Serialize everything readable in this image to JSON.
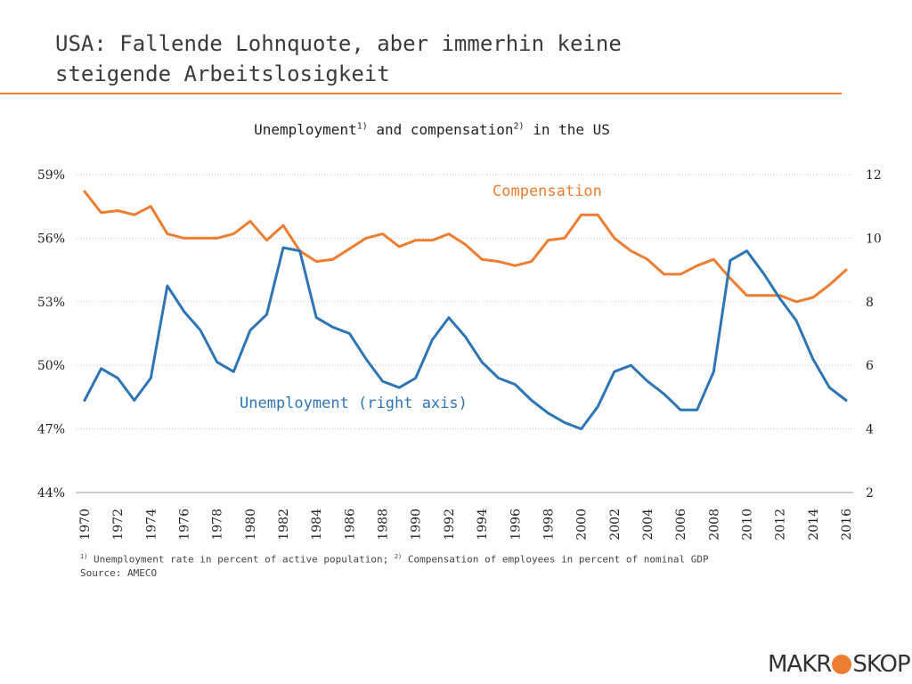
{
  "page": {
    "title_line1": "USA: Fallende Lohnquote, aber immerhin keine",
    "title_line2": "steigende Arbeitslosigkeit",
    "accent_color": "#ed7d31"
  },
  "chart_title": {
    "part1": "Unemployment",
    "sup1": "1)",
    "part2": " and compensation",
    "sup2": "2)",
    "part3": " in the US"
  },
  "footnote": {
    "sup1": "1)",
    "text1": " Unemployment rate in percent of active population; ",
    "sup2": "2)",
    "text2": " Compensation of employees in percent of nominal GDP",
    "source": "Source: AMECO"
  },
  "logo": {
    "left_text": "MAKR",
    "right_text": "SKOP",
    "dot_color": "#ed7d31"
  },
  "chart_data": {
    "type": "line",
    "x": [
      1970,
      1971,
      1972,
      1973,
      1974,
      1975,
      1976,
      1977,
      1978,
      1979,
      1980,
      1981,
      1982,
      1983,
      1984,
      1985,
      1986,
      1987,
      1988,
      1989,
      1990,
      1991,
      1992,
      1993,
      1994,
      1995,
      1996,
      1997,
      1998,
      1999,
      2000,
      2001,
      2002,
      2003,
      2004,
      2005,
      2006,
      2007,
      2008,
      2009,
      2010,
      2011,
      2012,
      2013,
      2014,
      2015,
      2016
    ],
    "x_tick_labels": [
      "1970",
      "1972",
      "1974",
      "1976",
      "1978",
      "1980",
      "1982",
      "1984",
      "1986",
      "1988",
      "1990",
      "1992",
      "1994",
      "1996",
      "1998",
      "2000",
      "2002",
      "2004",
      "2006",
      "2008",
      "2010",
      "2012",
      "2014",
      "2016"
    ],
    "left_axis": {
      "ticks": [
        "59%",
        "56%",
        "53%",
        "50%",
        "47%",
        "44%"
      ],
      "range": [
        44,
        59
      ]
    },
    "right_axis": {
      "ticks": [
        "12",
        "10",
        "8",
        "6",
        "4",
        "2"
      ],
      "range": [
        2,
        12
      ]
    },
    "grid": true,
    "series": [
      {
        "name": "Compensation",
        "axis": "left",
        "color": "#ed7d31",
        "label_text": "Compensation",
        "values": [
          58.2,
          57.2,
          57.3,
          57.1,
          57.5,
          56.2,
          56.0,
          56.0,
          56.0,
          56.2,
          56.8,
          55.9,
          56.6,
          55.4,
          54.9,
          55.0,
          55.5,
          56.0,
          56.2,
          55.6,
          55.9,
          55.9,
          56.2,
          55.7,
          55.0,
          54.9,
          54.7,
          54.9,
          55.9,
          56.0,
          57.1,
          57.1,
          56.0,
          55.4,
          55.0,
          54.3,
          54.3,
          54.7,
          55.0,
          54.1,
          53.3,
          53.3,
          53.3,
          53.0,
          53.2,
          53.8,
          54.5
        ]
      },
      {
        "name": "Unemployment (right axis)",
        "axis": "right",
        "color": "#2e75b6",
        "label_text": "Unemployment (right axis)",
        "values": [
          4.9,
          5.9,
          5.6,
          4.9,
          5.6,
          8.5,
          7.7,
          7.1,
          6.1,
          5.8,
          7.1,
          7.6,
          9.7,
          9.6,
          7.5,
          7.2,
          7.0,
          6.2,
          5.5,
          5.3,
          5.6,
          6.8,
          7.5,
          6.9,
          6.1,
          5.6,
          5.4,
          4.9,
          4.5,
          4.2,
          4.0,
          4.7,
          5.8,
          6.0,
          5.5,
          5.1,
          4.6,
          4.6,
          5.8,
          9.3,
          9.6,
          8.9,
          8.1,
          7.4,
          6.2,
          5.3,
          4.9
        ]
      }
    ]
  }
}
